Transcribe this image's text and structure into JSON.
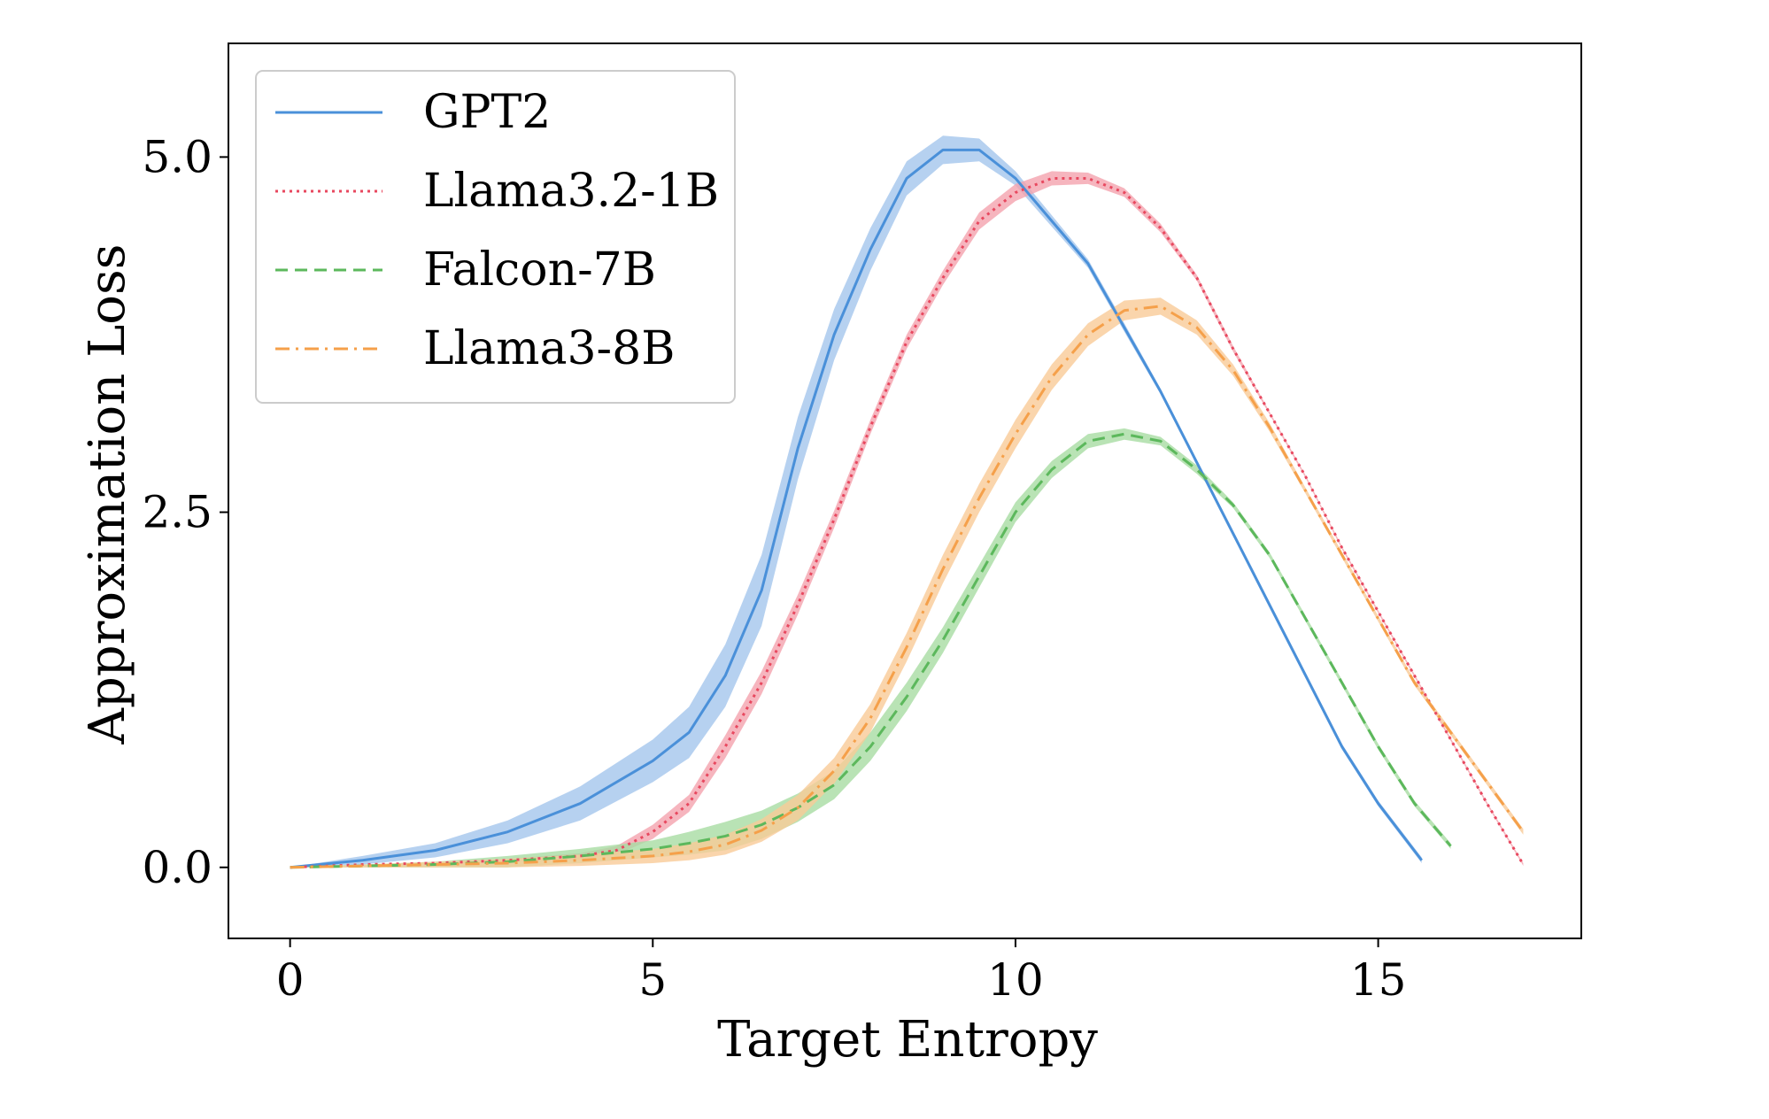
{
  "chart_data": {
    "type": "line",
    "title": "",
    "xlabel": "Target Entropy",
    "ylabel": "Approximation Loss",
    "xlim": [
      -0.85,
      17.8
    ],
    "ylim": [
      -0.5,
      5.8
    ],
    "xticks": [
      0,
      5,
      10,
      15
    ],
    "xtick_labels": [
      "0",
      "5",
      "10",
      "15"
    ],
    "yticks": [
      0.0,
      2.5,
      5.0
    ],
    "ytick_labels": [
      "0.0",
      "2.5",
      "5.0"
    ],
    "grid": false,
    "legend_position": "top-left",
    "series": [
      {
        "name": "GPT2",
        "style": "solid",
        "color": "#4a90d9",
        "band_color": "#a4c6ec",
        "x": [
          0,
          1,
          2,
          3,
          4,
          5,
          5.5,
          6,
          6.5,
          7,
          7.5,
          8,
          8.5,
          9,
          9.5,
          10,
          10.5,
          11,
          11.5,
          12,
          12.5,
          13,
          13.5,
          14,
          14.5,
          15,
          15.6
        ],
        "y": [
          0.0,
          0.05,
          0.12,
          0.25,
          0.45,
          0.75,
          0.95,
          1.35,
          1.95,
          2.95,
          3.75,
          4.35,
          4.85,
          5.05,
          5.05,
          4.85,
          4.55,
          4.25,
          3.8,
          3.35,
          2.85,
          2.35,
          1.85,
          1.35,
          0.85,
          0.45,
          0.05
        ],
        "band": [
          0.0,
          0.03,
          0.05,
          0.08,
          0.12,
          0.15,
          0.18,
          0.22,
          0.25,
          0.22,
          0.18,
          0.15,
          0.12,
          0.1,
          0.08,
          0.05,
          0.04,
          0.03,
          0.03,
          0.02,
          0.02,
          0.02,
          0.02,
          0.02,
          0.02,
          0.02,
          0.02
        ]
      },
      {
        "name": "Llama3.2-1B",
        "style": "dotted",
        "color": "#e8485f",
        "band_color": "#f4a3ae",
        "x": [
          0,
          1,
          2,
          3,
          4,
          4.5,
          5,
          5.5,
          6,
          6.5,
          7,
          7.5,
          8,
          8.5,
          9,
          9.5,
          10,
          10.5,
          11,
          11.5,
          12,
          12.5,
          13,
          13.5,
          14,
          14.5,
          15,
          15.5,
          16,
          16.5,
          17
        ],
        "y": [
          0.0,
          0.02,
          0.03,
          0.05,
          0.08,
          0.12,
          0.25,
          0.45,
          0.85,
          1.3,
          1.85,
          2.45,
          3.1,
          3.7,
          4.15,
          4.55,
          4.75,
          4.85,
          4.85,
          4.75,
          4.5,
          4.15,
          3.65,
          3.2,
          2.75,
          2.25,
          1.8,
          1.35,
          0.9,
          0.45,
          0.02
        ],
        "band": [
          0.0,
          0.0,
          0.0,
          0.01,
          0.02,
          0.03,
          0.05,
          0.06,
          0.08,
          0.08,
          0.07,
          0.06,
          0.05,
          0.05,
          0.05,
          0.06,
          0.06,
          0.05,
          0.04,
          0.03,
          0.03,
          0.02,
          0.02,
          0.01,
          0.01,
          0.01,
          0.01,
          0.01,
          0.01,
          0.01,
          0.01
        ]
      },
      {
        "name": "Falcon-7B",
        "style": "dashed",
        "color": "#5cb85c",
        "band_color": "#a8dca2",
        "x": [
          0,
          1,
          2,
          3,
          4,
          5,
          5.5,
          6,
          6.5,
          7,
          7.5,
          8,
          8.5,
          9,
          9.5,
          10,
          10.5,
          11,
          11.5,
          12,
          12.5,
          13,
          13.5,
          14,
          14.5,
          15,
          15.5,
          16
        ],
        "y": [
          0.0,
          0.01,
          0.02,
          0.04,
          0.08,
          0.13,
          0.17,
          0.22,
          0.3,
          0.42,
          0.58,
          0.85,
          1.2,
          1.6,
          2.05,
          2.5,
          2.8,
          3.0,
          3.05,
          3.0,
          2.8,
          2.55,
          2.2,
          1.75,
          1.3,
          0.85,
          0.45,
          0.15
        ],
        "band": [
          0.0,
          0.01,
          0.02,
          0.04,
          0.05,
          0.06,
          0.08,
          0.1,
          0.1,
          0.1,
          0.1,
          0.1,
          0.1,
          0.09,
          0.08,
          0.07,
          0.06,
          0.05,
          0.04,
          0.03,
          0.03,
          0.02,
          0.02,
          0.02,
          0.02,
          0.02,
          0.02,
          0.02
        ]
      },
      {
        "name": "Llama3-8B",
        "style": "dashdot",
        "color": "#f5a04a",
        "band_color": "#f9cb97",
        "x": [
          0,
          1,
          2,
          3,
          4,
          5,
          5.5,
          6,
          6.5,
          7,
          7.5,
          8,
          8.5,
          9,
          9.5,
          10,
          10.5,
          11,
          11.5,
          12,
          12.5,
          13,
          13.5,
          14,
          14.5,
          15,
          15.5,
          16,
          16.5,
          17
        ],
        "y": [
          0.0,
          0.01,
          0.02,
          0.03,
          0.05,
          0.08,
          0.11,
          0.16,
          0.26,
          0.42,
          0.68,
          1.05,
          1.55,
          2.1,
          2.6,
          3.05,
          3.45,
          3.75,
          3.92,
          3.95,
          3.8,
          3.5,
          3.1,
          2.65,
          2.2,
          1.75,
          1.3,
          0.95,
          0.6,
          0.25
        ],
        "band": [
          0.0,
          0.01,
          0.02,
          0.03,
          0.04,
          0.05,
          0.06,
          0.07,
          0.08,
          0.09,
          0.09,
          0.1,
          0.1,
          0.1,
          0.1,
          0.1,
          0.09,
          0.08,
          0.07,
          0.06,
          0.05,
          0.04,
          0.03,
          0.02,
          0.02,
          0.02,
          0.02,
          0.02,
          0.02,
          0.02
        ]
      }
    ]
  }
}
